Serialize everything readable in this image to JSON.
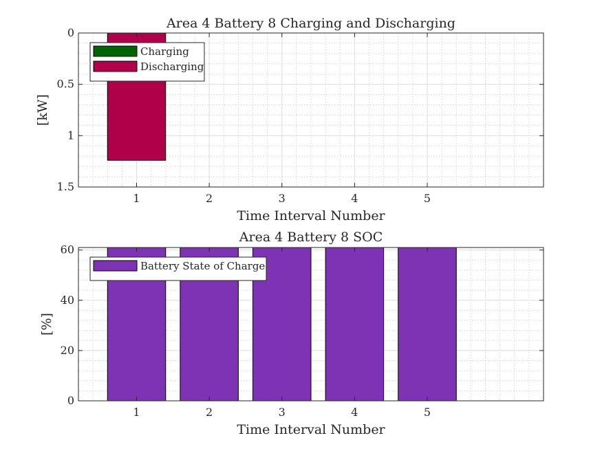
{
  "chart_data": [
    {
      "type": "bar",
      "title": "Area 4 Battery 8 Charging and Discharging",
      "xlabel": "Time Interval Number",
      "ylabel": "[kW]",
      "xlim": [
        0.2,
        6.6
      ],
      "ylim": [
        0,
        1.5
      ],
      "y_direction": "reversed",
      "grid": "on",
      "minor_grid": "on",
      "legend": "top-left",
      "xticks": [
        "1",
        "2",
        "3",
        "4",
        "5"
      ],
      "yticks": [
        "0",
        "0.5",
        "1",
        "1.5"
      ],
      "x": [
        1,
        2,
        3,
        4,
        5
      ],
      "series": [
        {
          "name": "Charging",
          "color": "#006400",
          "values": [
            0,
            0,
            0,
            0,
            0
          ]
        },
        {
          "name": "Discharging",
          "color": "#b00049",
          "values": [
            1.24,
            0,
            0,
            0,
            0
          ]
        }
      ]
    },
    {
      "type": "bar",
      "title": "Area 4 Battery 8 SOC",
      "xlabel": "Time Interval Number",
      "ylabel": "[%]",
      "xlim": [
        0.2,
        6.6
      ],
      "ylim": [
        0,
        61
      ],
      "grid": "on",
      "minor_grid": "on",
      "legend": "top-left",
      "xticks": [
        "1",
        "2",
        "3",
        "4",
        "5"
      ],
      "yticks": [
        "0",
        "20",
        "40",
        "60"
      ],
      "x": [
        1,
        2,
        3,
        4,
        5
      ],
      "series": [
        {
          "name": "Battery State of Charge",
          "color": "#7e33b4",
          "values": [
            61,
            61,
            61,
            61,
            61
          ]
        }
      ]
    }
  ]
}
